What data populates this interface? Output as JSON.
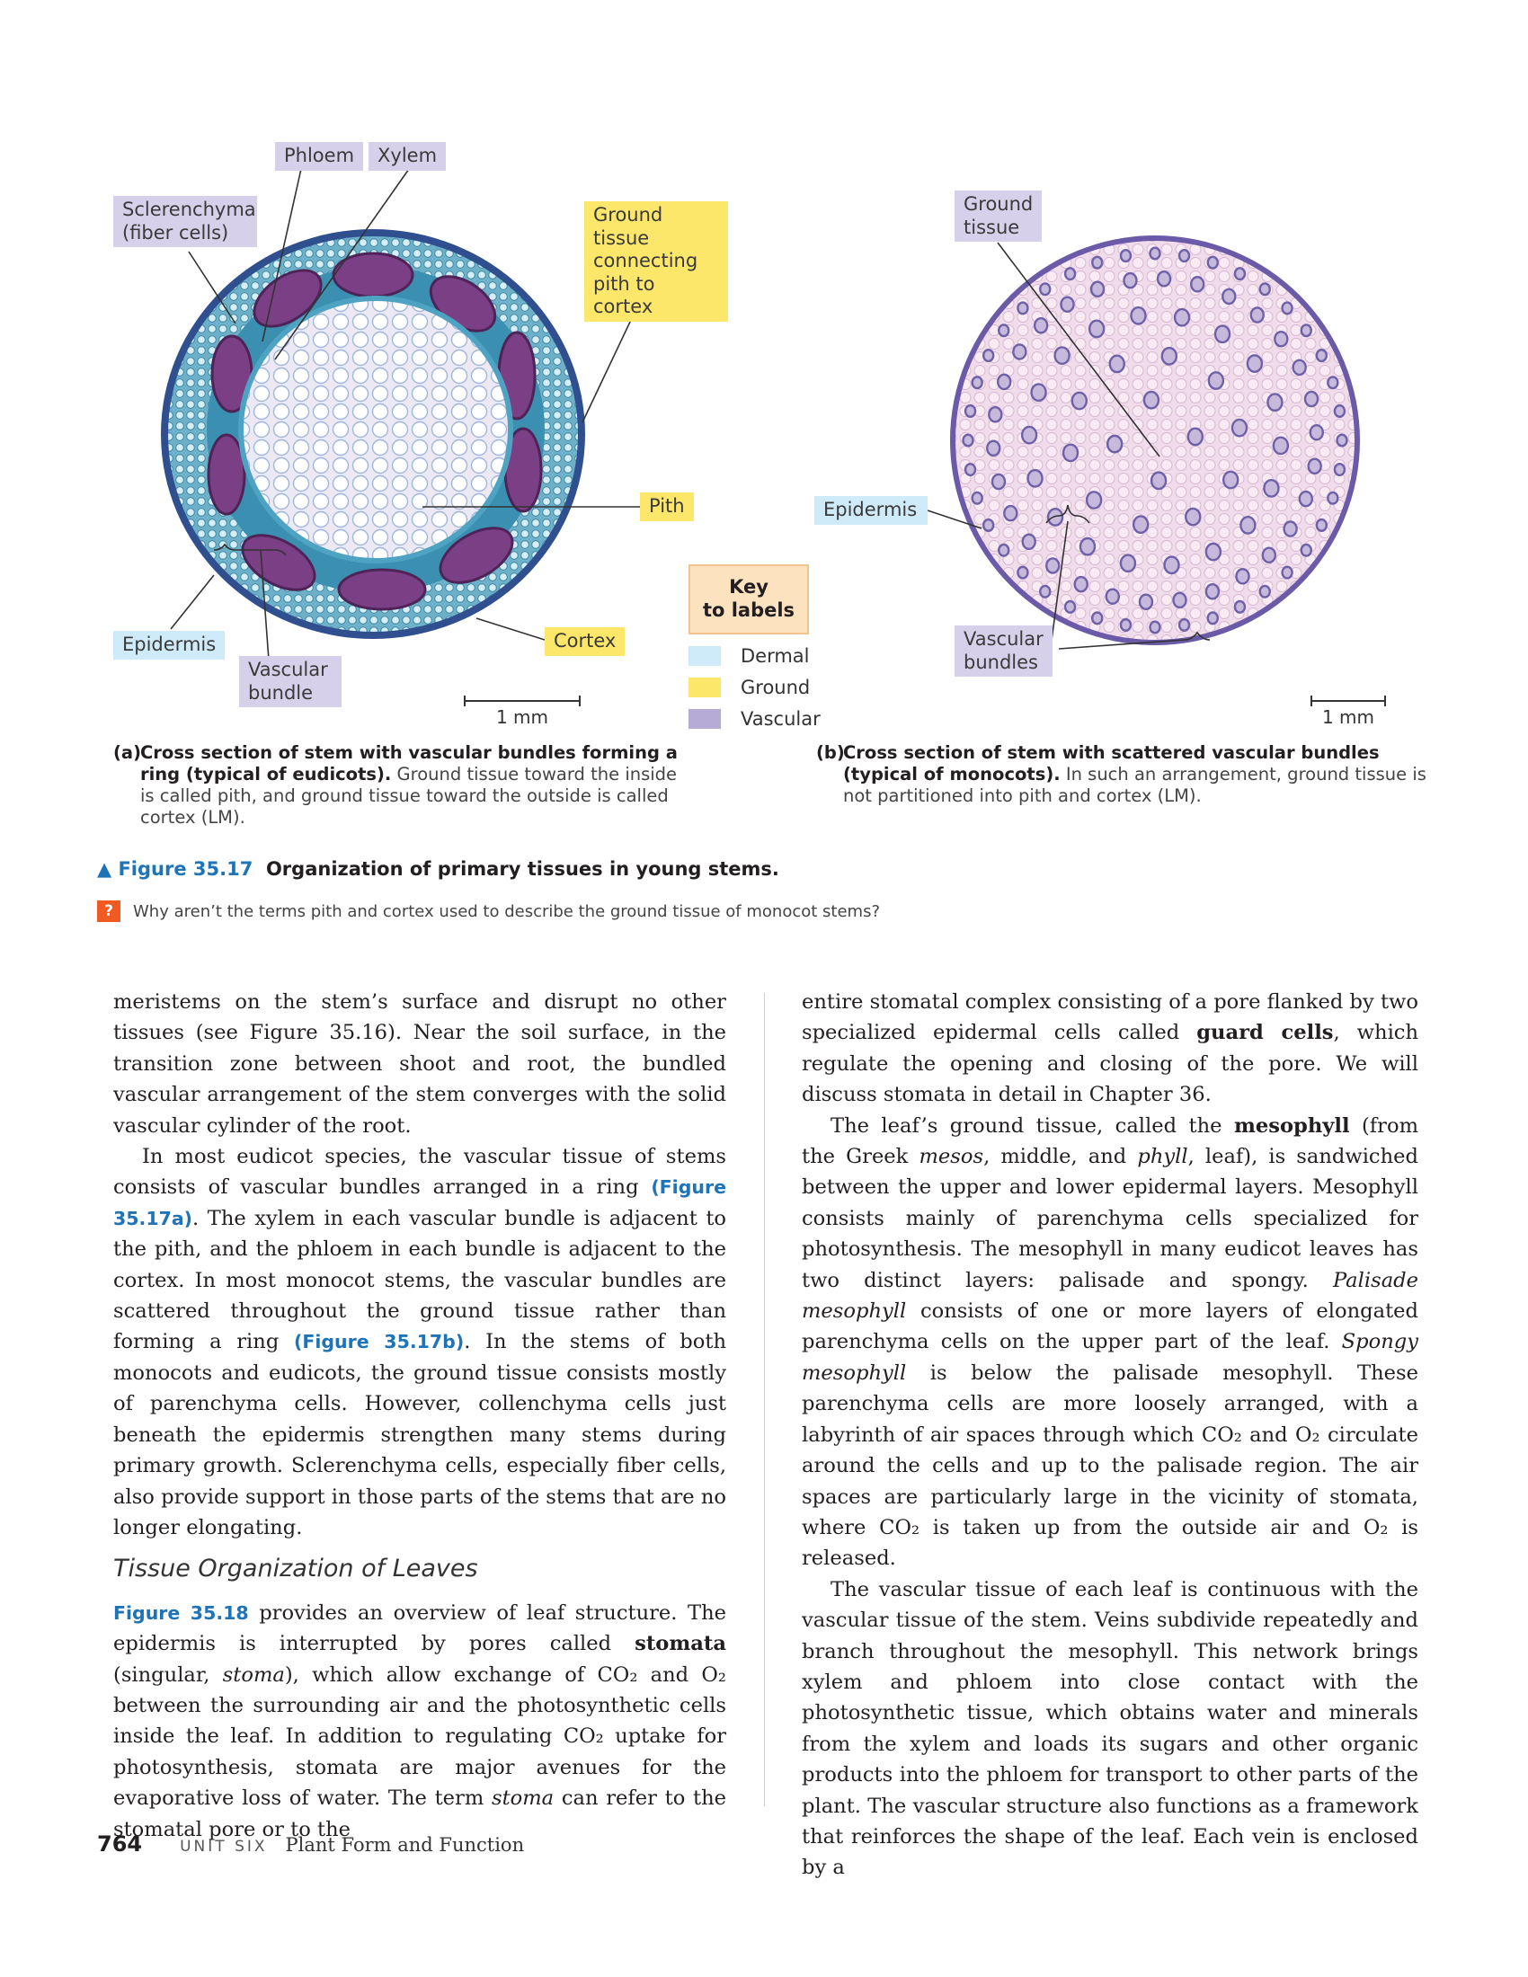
{
  "figure": {
    "labels_a": {
      "phloem": "Phloem",
      "xylem": "Xylem",
      "sclerenchyma": "Sclerenchyma\n(fiber cells)",
      "ground_connecting": "Ground tissue\nconnecting\npith to cortex",
      "pith": "Pith",
      "epidermis": "Epidermis",
      "vascular_bundle": "Vascular\nbundle",
      "cortex": "Cortex",
      "scale": "1 mm"
    },
    "labels_b": {
      "ground_tissue": "Ground\ntissue",
      "epidermis": "Epidermis",
      "vascular_bundles": "Vascular\nbundles",
      "scale": "1 mm"
    },
    "key": {
      "title": "Key\nto labels",
      "items": [
        {
          "label": "Dermal",
          "color": "#cfeaf8"
        },
        {
          "label": "Ground",
          "color": "#fde76a"
        },
        {
          "label": "Vascular",
          "color": "#d7d0ea"
        }
      ]
    },
    "caption_a": {
      "letter": "(a)",
      "bold": "Cross section of stem with vascular bundles forming a ring (typical of eudicots).",
      "text": " Ground tissue toward the inside is called pith, and ground tissue toward the outside is called cortex (LM)."
    },
    "caption_b": {
      "letter": "(b)",
      "bold": "Cross section of stem with scattered vascular bundles (typical of monocots).",
      "text": " In such an arrangement, ground tissue is not partitioned into pith and cortex (LM)."
    },
    "figure_number": "▲ Figure 35.17",
    "figure_title": "Organization of primary tissues in young stems.",
    "question_mark": "?",
    "question": "Why aren’t the terms pith and cortex used to describe the ground tissue of monocot stems?"
  },
  "colors": {
    "dermal": "#cfeaf8",
    "ground": "#fde76a",
    "vascular": "#d7d0ea",
    "link_blue": "#1f73b7",
    "question_orange": "#f15a22"
  },
  "left_column": {
    "p1": "meristems on the stem’s surface and disrupt no other tissues (see Figure 35.16). Near the soil surface, in the transition zone between shoot and root, the bundled vascular arrangement of the stem converges with the solid vascular cylinder of the root.",
    "p2_a": "In most eudicot species, the vascular tissue of stems consists of vascular bundles arranged in a ring ",
    "p2_ref1": "(Figure 35.17a)",
    "p2_b": ". The xylem in each vascular bundle is adjacent to the pith, and the phloem in each bundle is adjacent to the cortex. In most monocot stems, the vascular bundles are scattered throughout the ground tissue rather than forming a ring ",
    "p2_ref2": "(Figure 35.17b)",
    "p2_c": ". In the stems of both monocots and eudicots, the ground tissue consists mostly of parenchyma cells. However, collenchyma cells just beneath the epidermis strengthen many stems during primary growth. Sclerenchyma cells, especially fiber cells, also provide support in those parts of the stems that are no longer elongating.",
    "heading": "Tissue Organization of Leaves",
    "p3_ref": "Figure 35.18",
    "p3_a": " provides an overview of leaf structure. The epidermis is interrupted by pores called ",
    "p3_bold": "stomata",
    "p3_b": " (singular, ",
    "p3_italic": "stoma",
    "p3_c": "), which allow exchange of CO₂ and O₂ between the surrounding air and the photosynthetic cells inside the leaf. In addition to regulating CO₂ uptake for photosynthesis, stomata are major avenues for the evaporative loss of water. The term ",
    "p3_italic2": "stoma",
    "p3_d": " can refer to the stomatal pore or to the"
  },
  "right_column": {
    "p1_a": "entire stomatal complex consisting of a pore flanked by two specialized epidermal cells called ",
    "p1_bold": "guard cells",
    "p1_b": ", which regulate the opening and closing of the pore. We will discuss stomata in detail in Chapter 36.",
    "p2_a": "The leaf’s ground tissue, called the ",
    "p2_bold": "mesophyll",
    "p2_b": " (from the Greek ",
    "p2_i1": "mesos",
    "p2_c": ", middle, and ",
    "p2_i2": "phyll",
    "p2_d": ", leaf), is sandwiched between the upper and lower epidermal layers. Mesophyll consists mainly of parenchyma cells specialized for photosynthesis. The mesophyll in many eudicot leaves has two distinct layers: palisade and spongy. ",
    "p2_i3": "Palisade mesophyll",
    "p2_e": " consists of one or more layers of elongated parenchyma cells on the upper part of the leaf. ",
    "p2_i4": "Spongy mesophyll",
    "p2_f": " is below the palisade mesophyll. These parenchyma cells are more loosely arranged, with a labyrinth of air spaces through which CO₂ and O₂ circulate around the cells and up to the palisade region. The air spaces are particularly large in the vicinity of stomata, where CO₂ is taken up from the outside air and O₂ is released.",
    "p3": "The vascular tissue of each leaf is continuous with the vascular tissue of the stem. Veins subdivide repeatedly and branch throughout the mesophyll. This network brings xylem and phloem into close contact with the photosynthetic tissue, which obtains water and minerals from the xylem and loads its sugars and other organic products into the phloem for transport to other parts of the plant. The vascular structure also functions as a framework that reinforces the shape of the leaf. Each vein is enclosed by a"
  },
  "footer": {
    "page_number": "764",
    "unit": "UNIT SIX",
    "title": "Plant Form and Function"
  }
}
